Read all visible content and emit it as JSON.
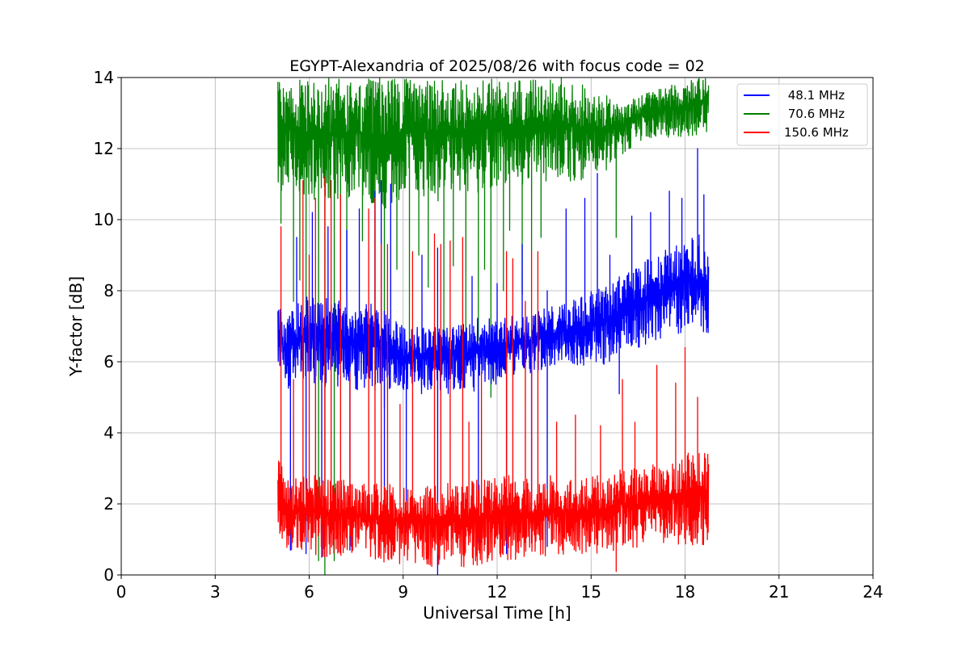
{
  "chart_data": {
    "type": "line",
    "title": "EGYPT-Alexandria of 2025/08/26 with focus code = 02",
    "xlabel": "Universal Time [h]",
    "ylabel": "Y-factor [dB]",
    "xlim": [
      0,
      24
    ],
    "ylim": [
      0,
      14
    ],
    "xticks": [
      0,
      3,
      6,
      9,
      12,
      15,
      18,
      21,
      24
    ],
    "yticks": [
      0,
      2,
      4,
      6,
      8,
      10,
      12,
      14
    ],
    "grid": true,
    "legend_position": "upper right",
    "series": [
      {
        "name": " 48.1 MHz",
        "color": "#0000ff",
        "x": [
          5.0,
          5.2,
          5.5,
          6.0,
          6.5,
          7.0,
          7.5,
          8.0,
          8.5,
          9.0,
          9.5,
          10.0,
          10.5,
          11.0,
          11.5,
          12.0,
          12.5,
          13.0,
          13.5,
          14.0,
          14.5,
          15.0,
          15.5,
          16.0,
          16.5,
          17.0,
          17.5,
          18.0,
          18.5,
          18.75
        ],
        "low": [
          5.8,
          5.2,
          5.3,
          5.4,
          5.3,
          5.3,
          5.2,
          5.3,
          5.2,
          5.1,
          5.1,
          5.1,
          5.1,
          5.1,
          5.2,
          5.3,
          5.5,
          5.6,
          5.8,
          5.9,
          5.9,
          5.8,
          5.9,
          6.2,
          6.4,
          6.5,
          6.7,
          6.8,
          6.8,
          6.7
        ],
        "high": [
          7.9,
          7.2,
          7.5,
          8.0,
          7.8,
          7.7,
          7.6,
          7.7,
          7.4,
          7.0,
          7.1,
          7.0,
          7.1,
          7.1,
          7.3,
          7.2,
          7.3,
          7.4,
          7.5,
          7.6,
          7.8,
          8.0,
          8.2,
          8.5,
          8.7,
          9.0,
          9.2,
          9.4,
          9.6,
          9.5
        ],
        "spikes": [
          [
            5.6,
            9.5
          ],
          [
            6.1,
            10.2
          ],
          [
            6.6,
            9.8
          ],
          [
            7.2,
            9.7
          ],
          [
            7.6,
            10.3
          ],
          [
            8.1,
            10.8
          ],
          [
            8.3,
            11.1
          ],
          [
            8.6,
            11.0
          ],
          [
            9.6,
            9.0
          ],
          [
            10.1,
            9.2
          ],
          [
            11.2,
            8.4
          ],
          [
            12.0,
            8.2
          ],
          [
            12.8,
            9.3
          ],
          [
            13.6,
            8.0
          ],
          [
            14.2,
            10.3
          ],
          [
            14.8,
            10.6
          ],
          [
            15.2,
            11.3
          ],
          [
            15.6,
            9.0
          ],
          [
            16.3,
            10.1
          ],
          [
            16.9,
            10.2
          ],
          [
            17.5,
            10.8
          ],
          [
            17.9,
            10.6
          ],
          [
            18.4,
            12.0
          ],
          [
            18.6,
            10.7
          ]
        ],
        "dips": [
          [
            5.4,
            0.7
          ],
          [
            5.9,
            0.6
          ],
          [
            6.4,
            0.5
          ],
          [
            7.3,
            0.7
          ],
          [
            8.4,
            1.4
          ],
          [
            9.1,
            1.2
          ],
          [
            10.1,
            0.0
          ],
          [
            11.4,
            0.9
          ],
          [
            12.3,
            0.6
          ],
          [
            13.1,
            0.9
          ],
          [
            13.6,
            0.8
          ],
          [
            15.9,
            5.1
          ]
        ]
      },
      {
        "name": " 70.6 MHz",
        "color": "#008000",
        "x": [
          5.0,
          5.2,
          5.5,
          6.0,
          6.5,
          7.0,
          7.5,
          8.0,
          8.5,
          9.0,
          9.5,
          10.0,
          10.5,
          11.0,
          11.5,
          12.0,
          12.5,
          13.0,
          13.5,
          14.0,
          14.5,
          15.0,
          15.5,
          16.0,
          16.5,
          17.0,
          17.5,
          18.0,
          18.5,
          18.75
        ],
        "low": [
          10.8,
          10.8,
          10.9,
          10.5,
          10.6,
          10.5,
          10.6,
          10.4,
          10.3,
          10.6,
          10.7,
          10.5,
          10.6,
          10.6,
          10.8,
          10.9,
          11.0,
          10.8,
          10.9,
          11.2,
          11.0,
          11.2,
          11.4,
          11.8,
          12.2,
          12.3,
          12.3,
          12.3,
          12.4,
          12.5
        ],
        "high": [
          14.0,
          14.0,
          14.0,
          14.0,
          14.0,
          14.0,
          14.0,
          14.0,
          14.0,
          14.0,
          14.0,
          14.0,
          14.0,
          14.0,
          14.0,
          14.0,
          14.0,
          14.0,
          14.0,
          14.0,
          13.9,
          13.8,
          13.5,
          13.2,
          13.5,
          13.6,
          13.8,
          13.9,
          14.0,
          14.0
        ],
        "spikes": [],
        "dips": [
          [
            5.1,
            9.9
          ],
          [
            5.5,
            7.7
          ],
          [
            5.7,
            8.3
          ],
          [
            5.9,
            7.3
          ],
          [
            6.3,
            0.4
          ],
          [
            6.5,
            0.0
          ],
          [
            6.8,
            0.4
          ],
          [
            7.0,
            6.9
          ],
          [
            7.2,
            8.0
          ],
          [
            7.7,
            9.4
          ],
          [
            8.1,
            5.2
          ],
          [
            8.4,
            4.7
          ],
          [
            8.8,
            8.6
          ],
          [
            9.2,
            6.6
          ],
          [
            9.5,
            9.0
          ],
          [
            9.8,
            8.1
          ],
          [
            10.3,
            6.6
          ],
          [
            10.6,
            8.7
          ],
          [
            11.0,
            6.8
          ],
          [
            11.4,
            6.6
          ],
          [
            11.6,
            8.6
          ],
          [
            11.8,
            5.0
          ],
          [
            12.2,
            8.0
          ],
          [
            12.4,
            9.7
          ],
          [
            12.8,
            7.9
          ],
          [
            13.1,
            9.1
          ],
          [
            13.4,
            9.5
          ],
          [
            15.8,
            9.5
          ]
        ]
      },
      {
        "name": "150.6 MHz",
        "color": "#ff0000",
        "x": [
          5.0,
          5.2,
          5.5,
          6.0,
          6.5,
          7.0,
          7.5,
          8.0,
          8.5,
          9.0,
          9.5,
          10.0,
          10.5,
          11.0,
          11.5,
          12.0,
          12.5,
          13.0,
          13.5,
          14.0,
          14.5,
          15.0,
          15.5,
          16.0,
          16.5,
          17.0,
          17.5,
          18.0,
          18.5,
          18.75
        ],
        "low": [
          0.7,
          0.7,
          0.7,
          0.6,
          0.5,
          0.5,
          0.5,
          0.4,
          0.3,
          0.3,
          0.3,
          0.2,
          0.2,
          0.2,
          0.3,
          0.3,
          0.4,
          0.5,
          0.5,
          0.5,
          0.6,
          0.6,
          0.6,
          0.8,
          0.7,
          0.8,
          0.8,
          0.8,
          0.8,
          0.8
        ],
        "high": [
          3.5,
          3.0,
          2.7,
          2.8,
          2.8,
          2.7,
          2.6,
          2.6,
          2.6,
          2.5,
          2.5,
          2.5,
          2.6,
          2.6,
          2.7,
          2.8,
          2.8,
          2.7,
          2.8,
          2.8,
          2.7,
          2.8,
          2.8,
          3.0,
          3.0,
          3.1,
          3.2,
          3.4,
          3.6,
          3.5
        ],
        "spikes": [
          [
            5.1,
            9.8
          ],
          [
            5.5,
            5.5
          ],
          [
            5.8,
            11.1
          ],
          [
            6.0,
            9.0
          ],
          [
            6.2,
            10.6
          ],
          [
            6.5,
            11.2
          ],
          [
            6.7,
            11.1
          ],
          [
            7.0,
            10.7
          ],
          [
            7.3,
            5.7
          ],
          [
            7.9,
            10.3
          ],
          [
            8.1,
            10.6
          ],
          [
            8.3,
            9.3
          ],
          [
            8.5,
            9.3
          ],
          [
            8.9,
            4.8
          ],
          [
            9.3,
            9.1
          ],
          [
            10.0,
            9.6
          ],
          [
            10.2,
            9.3
          ],
          [
            10.5,
            9.4
          ],
          [
            10.9,
            9.5
          ],
          [
            11.1,
            4.3
          ],
          [
            11.5,
            5.7
          ],
          [
            12.3,
            9.1
          ],
          [
            12.5,
            8.9
          ],
          [
            12.9,
            7.7
          ],
          [
            13.1,
            9.1
          ],
          [
            13.3,
            9.1
          ],
          [
            13.9,
            4.3
          ],
          [
            14.5,
            4.5
          ],
          [
            15.3,
            4.2
          ],
          [
            16.0,
            5.5
          ],
          [
            16.4,
            4.3
          ],
          [
            17.1,
            5.9
          ],
          [
            17.7,
            5.4
          ],
          [
            18.0,
            6.4
          ],
          [
            18.4,
            5.0
          ]
        ],
        "dips": [
          [
            15.8,
            0.1
          ]
        ]
      }
    ]
  }
}
